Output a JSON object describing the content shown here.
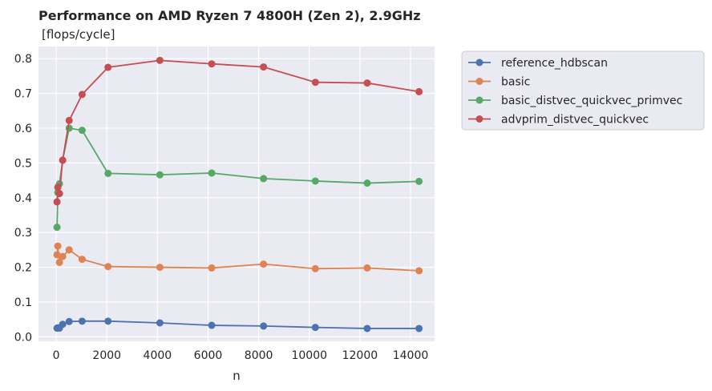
{
  "chart_data": {
    "type": "line",
    "title": "Performance on AMD Ryzen 7 4800H (Zen 2),  2.9GHz",
    "subtitle": " [flops/cycle]",
    "xlabel": "n",
    "ylabel": "",
    "xlim": [
      -700,
      14950
    ],
    "ylim": [
      -0.013,
      0.835
    ],
    "xticks": [
      0,
      2000,
      4000,
      6000,
      8000,
      10000,
      12000,
      14000
    ],
    "yticks": [
      0.0,
      0.1,
      0.2,
      0.3,
      0.4,
      0.5,
      0.6,
      0.7,
      0.8
    ],
    "grid": true,
    "legend": "outside-right",
    "series": [
      {
        "name": "reference_hdbscan",
        "color": "#4c72b0",
        "x": [
          32,
          64,
          128,
          256,
          512,
          1024,
          2048,
          4096,
          6144,
          8192,
          10240,
          12288,
          14336
        ],
        "y": [
          0.025,
          0.026,
          0.025,
          0.036,
          0.044,
          0.045,
          0.045,
          0.04,
          0.033,
          0.031,
          0.027,
          0.024,
          0.024
        ]
      },
      {
        "name": "basic",
        "color": "#dd8452",
        "x": [
          32,
          64,
          128,
          256,
          512,
          1024,
          2048,
          4096,
          6144,
          8192,
          10240,
          12288,
          14336
        ],
        "y": [
          0.236,
          0.261,
          0.214,
          0.231,
          0.25,
          0.223,
          0.202,
          0.2,
          0.198,
          0.209,
          0.196,
          0.198,
          0.19
        ]
      },
      {
        "name": "basic_distvec_quickvec_primvec",
        "color": "#55a868",
        "x": [
          32,
          64,
          128,
          256,
          512,
          1024,
          2048,
          4096,
          6144,
          8192,
          10240,
          12288,
          14336
        ],
        "y": [
          0.315,
          0.415,
          0.44,
          0.508,
          0.6,
          0.594,
          0.47,
          0.466,
          0.471,
          0.455,
          0.448,
          0.442,
          0.447
        ]
      },
      {
        "name": "advprim_distvec_quickvec",
        "color": "#c44e52",
        "x": [
          32,
          64,
          128,
          256,
          512,
          1024,
          2048,
          4096,
          6144,
          8192,
          10240,
          12288,
          14336
        ],
        "y": [
          0.388,
          0.43,
          0.412,
          0.508,
          0.622,
          0.697,
          0.775,
          0.795,
          0.785,
          0.776,
          0.732,
          0.73,
          0.705
        ]
      }
    ]
  }
}
